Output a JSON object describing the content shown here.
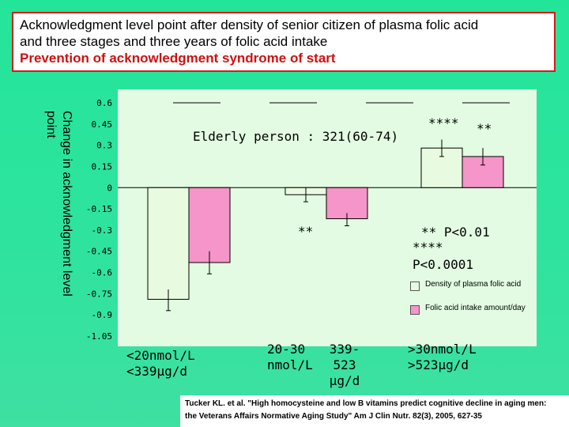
{
  "title": {
    "line1": "Acknowledgment level point after density of senior citizen of plasma folic acid",
    "line2": "and three stages and three years of folic acid intake",
    "line3": "Prevention of acknowledgment syndrome of start"
  },
  "colors": {
    "series1": "#e8fbe0",
    "series2": "#f595c9",
    "border": "#d81b1b",
    "plot_bg": "#e2fbe2"
  },
  "chart_data": {
    "type": "bar",
    "ylabel": "Change in acknowledgment level point",
    "ylim": [
      -1.05,
      0.6
    ],
    "yticks": [
      "0.6",
      "0.45",
      "0.3",
      "0.15",
      "0",
      "-0.15",
      "-0.3",
      "-0.45",
      "-0.6",
      "-0.75",
      "-0.9",
      "-1.05"
    ],
    "categories": [
      "<20nmol/L <339μg/d",
      "20-30 nmol/L / 339-523 μg/d",
      ">30nmol/L >523μg/d"
    ],
    "category_labels": [
      [
        "<20nmol/L",
        "<339μg/d"
      ],
      [
        "20-30",
        "nmol/L",
        "339-523",
        "μg/d"
      ],
      [
        ">30nmol/L",
        ">523μg/d"
      ]
    ],
    "series": [
      {
        "name": "Density of plasma folic acid",
        "values": [
          -0.79,
          -0.05,
          0.28
        ],
        "err_low": [
          -0.87,
          -0.1,
          0.22
        ],
        "err_high": [
          -0.72,
          0.0,
          0.34
        ]
      },
      {
        "name": "Folic acid intake amount/day",
        "values": [
          -0.53,
          -0.22,
          0.22
        ],
        "err_low": [
          -0.61,
          -0.27,
          0.16
        ],
        "err_high": [
          -0.45,
          -0.18,
          0.28
        ]
      }
    ],
    "annotations": {
      "subtitle": "Elderly person : 321(60-74)",
      "sig_a": "**",
      "sig_b": "****",
      "sig_c": "**",
      "sig_note1": "** P<0.01",
      "sig_note2": "****",
      "sig_note3": "P<0.0001"
    },
    "legend_placement": "bottom-right"
  },
  "reference": {
    "line1": "Tucker KL. et al. \"High homocysteine and low B vitamins predict cognitive decline in aging men:",
    "line2": "the Veterans Affairs Normative Aging Study\" Am J Clin Nutr. 82(3), 2005, 627-35"
  }
}
